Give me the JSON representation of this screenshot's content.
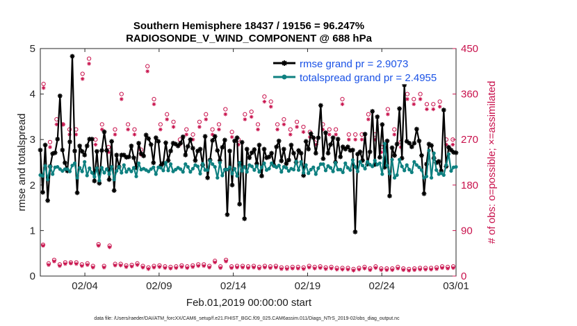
{
  "chart_data": {
    "type": "line",
    "title": [
      "Southern Hemisphere 18437 / 19156 = 96.247%",
      "RADIOSONDE_V_WIND_COMPONENT @ 688 hPa"
    ],
    "xlabel": "Feb.01,2019 00:00:00 start",
    "ylabel_left": "rmse and totalspread",
    "ylabel_right": "# of obs: o=possible; ×=assimilated",
    "footer": "data file: /Users/raeder/DAI/ATM_forcXX/CAM6_setup/f.e21.FHIST_BGC.f09_025.CAM6assim.011/Diags_NTrS_2019-02/obs_diag_output.nc",
    "x_range": [
      0,
      28
    ],
    "x_ticks": [
      3,
      8,
      13,
      18,
      23,
      28
    ],
    "x_tick_labels": [
      "02/04",
      "02/09",
      "02/14",
      "02/19",
      "02/24",
      "03/01"
    ],
    "y_left_range": [
      0,
      5
    ],
    "y_left_ticks": [
      "0",
      "1",
      "2",
      "3",
      "4",
      "5"
    ],
    "y_right_range": [
      0,
      450
    ],
    "y_right_ticks": [
      "0",
      "90",
      "180",
      "270",
      "360",
      "450"
    ],
    "colors": {
      "rmse": "#000000",
      "spread": "#0e8080",
      "obs": "#c8104b",
      "legend_text": "#1a52e6",
      "right_axis": "#c8104b"
    },
    "series": [
      {
        "name": "rmse grand pr = 2.9073",
        "axis": "left",
        "values": [
          2.77,
          1.84,
          2.88,
          1.66,
          2.41,
          2.69,
          2.71,
          3.01,
          3.96,
          2.77,
          2.49,
          2.31,
          2.95,
          4.83,
          2.75,
          1.83,
          2.86,
          2.74,
          2.66,
          2.86,
          3.01,
          3.01,
          2.09,
          2.74,
          2.04,
          2.76,
          3.17,
          2.76,
          2.12,
          2.96,
          1.88,
          2.66,
          2.4,
          2.66,
          2.66,
          2.61,
          2.62,
          2.86,
          2.6,
          2.38,
          2.92,
          2.69,
          2.64,
          3.1,
          3.02,
          2.89,
          2.49,
          3.04,
          2.96,
          2.42,
          2.48,
          2.93,
          2.54,
          2.75,
          2.92,
          2.9,
          2.86,
          2.92,
          3.06,
          2.66,
          2.85,
          3.0,
          2.81,
          2.54,
          2.75,
          2.79,
          2.44,
          3.07,
          2.16,
          2.55,
          2.98,
          3.07,
          2.76,
          2.54,
          2.83,
          2.99,
          1.35,
          2.75,
          2.0,
          2.97,
          3.04,
          1.58,
          2.94,
          1.26,
          2.79,
          2.6,
          2.71,
          2.78,
          2.47,
          2.88,
          2.2,
          2.79,
          2.6,
          2.62,
          2.7,
          2.43,
          2.84,
          2.97,
          2.53,
          2.79,
          2.47,
          2.55,
          2.88,
          2.7,
          2.5,
          2.76,
          2.7,
          2.21,
          2.96,
          2.79,
          3.13,
          3.04,
          2.7,
          3.04,
          3.75,
          2.58,
          3.15,
          2.7,
          2.89,
          3.04,
          2.5,
          3.01,
          2.62,
          2.84,
          2.79,
          2.84,
          2.76,
          2.77,
          0.97,
          2.68,
          2.73,
          2.54,
          3.12,
          2.46,
          2.73,
          3.62,
          2.45,
          3.5,
          2.61,
          3.33,
          2.39,
          2.97,
          1.76,
          2.82,
          2.65,
          2.9,
          3.68,
          2.59,
          4.2,
          2.96,
          2.92,
          2.84,
          2.92,
          3.23,
          2.97,
          2.65,
          1.81,
          2.46,
          2.9,
          2.87,
          2.59,
          2.49,
          2.52,
          2.31,
          3.65,
          2.41,
          2.83,
          2.77,
          2.72,
          2.71
        ]
      },
      {
        "name": "totalspread grand pr = 2.4955",
        "axis": "left",
        "values": [
          2.22,
          2.2,
          2.42,
          2.12,
          2.41,
          2.24,
          2.39,
          2.4,
          2.35,
          2.31,
          2.35,
          2.35,
          2.3,
          2.43,
          2.48,
          2.16,
          2.38,
          2.3,
          2.51,
          2.21,
          2.37,
          2.27,
          2.18,
          2.37,
          2.1,
          2.38,
          2.27,
          2.35,
          2.24,
          2.4,
          2.12,
          2.31,
          2.4,
          2.27,
          2.44,
          2.29,
          2.35,
          2.3,
          2.38,
          2.19,
          2.48,
          2.34,
          2.36,
          2.33,
          2.3,
          2.35,
          2.39,
          2.24,
          2.39,
          2.38,
          2.32,
          2.49,
          2.32,
          2.46,
          2.3,
          2.34,
          2.38,
          2.35,
          2.29,
          2.46,
          2.4,
          2.29,
          2.36,
          2.44,
          2.41,
          2.25,
          2.47,
          2.33,
          2.33,
          2.53,
          2.46,
          2.4,
          2.16,
          2.49,
          2.21,
          2.34,
          2.34,
          2.39,
          2.25,
          2.36,
          2.2,
          2.49,
          2.31,
          2.4,
          2.29,
          2.44,
          2.41,
          2.33,
          2.42,
          2.29,
          2.39,
          2.48,
          2.33,
          2.36,
          2.48,
          2.42,
          2.39,
          2.43,
          2.29,
          2.4,
          2.38,
          2.31,
          2.36,
          2.34,
          2.52,
          2.33,
          2.51,
          2.27,
          2.44,
          2.26,
          2.34,
          2.39,
          2.24,
          2.37,
          2.46,
          2.46,
          2.32,
          2.42,
          2.38,
          2.3,
          2.49,
          2.34,
          2.34,
          2.28,
          2.48,
          2.38,
          2.33,
          2.55,
          2.4,
          2.3,
          2.51,
          2.43,
          2.36,
          2.51,
          2.45,
          2.41,
          2.54,
          2.45,
          2.48,
          2.24,
          2.91,
          2.43,
          2.25,
          2.56,
          2.16,
          2.22,
          2.56,
          2.41,
          2.32,
          2.44,
          2.34,
          2.28,
          2.51,
          2.44,
          2.39,
          2.33,
          2.16,
          2.19,
          2.76,
          2.16,
          2.7,
          2.33,
          2.24,
          2.26,
          2.22,
          2.44,
          2.68,
          2.31,
          2.39,
          2.4
        ]
      },
      {
        "name": "obs possible",
        "axis": "right",
        "marker": "circle",
        "values": [
          62,
          25,
          32,
          23,
          27,
          27,
          27,
          23,
          25,
          20,
          63,
          20,
          60,
          24,
          24,
          21,
          22,
          25,
          20,
          17,
          20,
          21,
          19,
          18,
          19,
          21,
          19,
          21,
          23,
          23,
          20,
          30,
          19,
          32,
          19,
          20,
          20,
          19,
          20,
          18,
          20,
          19,
          20,
          17,
          17,
          18,
          18,
          17,
          20,
          18,
          19,
          17,
          18,
          16,
          16,
          16,
          14,
          16,
          18,
          15,
          19,
          15,
          15,
          15,
          18,
          15,
          14,
          15,
          16,
          16,
          16,
          17,
          19,
          18,
          19
        ]
      },
      {
        "name": "obs assimilated",
        "axis": "right",
        "marker": "asterisk",
        "values": [
          60,
          22,
          29,
          20,
          24,
          25,
          24,
          20,
          22,
          17,
          60,
          17,
          57,
          21,
          21,
          18,
          19,
          22,
          17,
          14,
          17,
          18,
          16,
          15,
          16,
          18,
          16,
          18,
          20,
          20,
          17,
          27,
          16,
          29,
          16,
          17,
          17,
          16,
          17,
          15,
          17,
          16,
          17,
          14,
          14,
          15,
          15,
          14,
          17,
          15,
          16,
          14,
          15,
          13,
          13,
          13,
          11,
          13,
          15,
          12,
          16,
          12,
          12,
          12,
          15,
          12,
          11,
          12,
          13,
          13,
          13,
          14,
          16,
          15,
          16
        ]
      },
      {
        "name": "upper obs possible",
        "axis": "right",
        "marker": "circle",
        "values": [
          380,
          265,
          310,
          300,
          290,
          290,
          400,
          430,
          270,
          300,
          255,
          290,
          360,
          300,
          290,
          250,
          415,
          350,
          300,
          320,
          305,
          270,
          290,
          280,
          305,
          320,
          290,
          300,
          330,
          285,
          270,
          320,
          325,
          300,
          355,
          345,
          300,
          310,
          290,
          305,
          295,
          285,
          270,
          300,
          290,
          290,
          350,
          280,
          280,
          280,
          320,
          280,
          255,
          330,
          290,
          265,
          360,
          350,
          360,
          340,
          340,
          345,
          270,
          270
        ]
      },
      {
        "name": "upper obs assimilated",
        "axis": "right",
        "marker": "asterisk",
        "values": [
          372,
          255,
          300,
          300,
          280,
          280,
          390,
          420,
          260,
          290,
          245,
          280,
          350,
          290,
          280,
          240,
          405,
          340,
          290,
          310,
          295,
          260,
          280,
          270,
          295,
          310,
          280,
          290,
          320,
          275,
          260,
          310,
          315,
          290,
          345,
          335,
          290,
          300,
          280,
          295,
          285,
          275,
          260,
          290,
          280,
          280,
          340,
          270,
          270,
          270,
          310,
          270,
          245,
          320,
          280,
          255,
          350,
          340,
          350,
          330,
          330,
          335,
          260,
          260
        ]
      }
    ]
  }
}
